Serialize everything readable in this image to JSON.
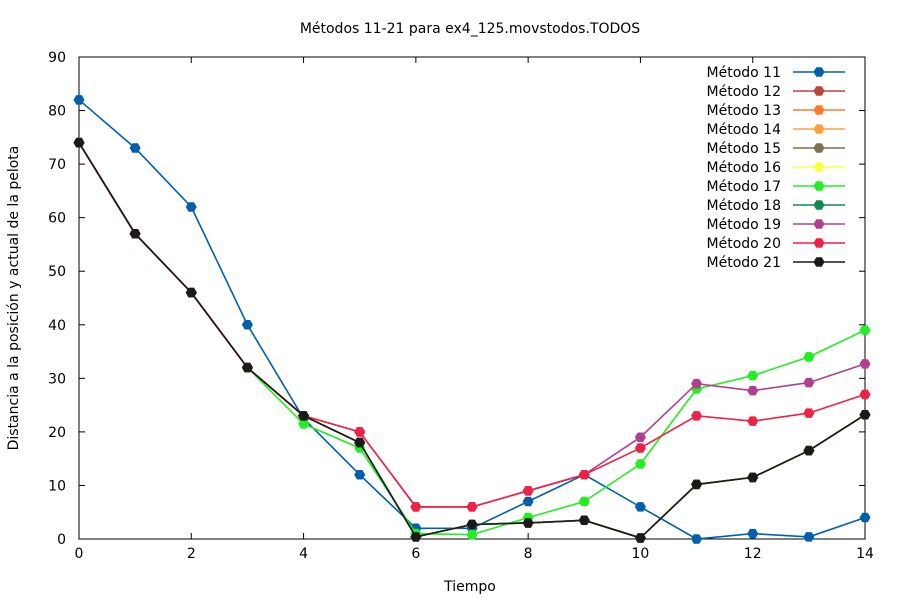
{
  "chart_data": {
    "type": "line",
    "title": "Métodos 11-21 para ex4_125.movstodos.TODOS",
    "xlabel": "Tiempo",
    "ylabel": "Distancia a la posición y actual de la pelota",
    "xlim": [
      0,
      14
    ],
    "ylim": [
      0,
      90
    ],
    "xticks": [
      "0",
      "2",
      "4",
      "6",
      "8",
      "10",
      "12",
      "14"
    ],
    "yticks": [
      "0",
      "10",
      "20",
      "30",
      "40",
      "50",
      "60",
      "70",
      "80",
      "90"
    ],
    "grid": false,
    "legend_position": "top-right",
    "x": [
      0,
      1,
      2,
      3,
      4,
      5,
      6,
      7,
      8,
      9,
      10,
      11,
      12,
      13,
      14
    ],
    "series": [
      {
        "name": "Método 11",
        "color": "#0060ad",
        "values": [
          82,
          73,
          62,
          40,
          22.5,
          12,
          2,
          2,
          7,
          12,
          6,
          0,
          1,
          0.4,
          4
        ]
      },
      {
        "name": "Método 12",
        "color": "#c0403c",
        "values": [
          74,
          57,
          46,
          32,
          23,
          18,
          0.4,
          2.7,
          3,
          3.5,
          0.2,
          10.2,
          11.5,
          16.5,
          23.2
        ]
      },
      {
        "name": "Método 13",
        "color": "#ff7a2a",
        "values": [
          74,
          57,
          46,
          32,
          23,
          18,
          0.4,
          2.7,
          3,
          3.5,
          0.2,
          10.2,
          11.5,
          16.5,
          23.2
        ]
      },
      {
        "name": "Método 14",
        "color": "#ffa040",
        "values": [
          74,
          57,
          46,
          32,
          23,
          18,
          0.4,
          2.7,
          3,
          3.5,
          0.2,
          10.2,
          11.5,
          16.5,
          23.2
        ]
      },
      {
        "name": "Método 15",
        "color": "#7f7050",
        "values": [
          74,
          57,
          46,
          32,
          23,
          18,
          0.4,
          2.7,
          3,
          3.5,
          0.2,
          10.2,
          11.5,
          16.5,
          23.2
        ]
      },
      {
        "name": "Método 16",
        "color": "#ffff44",
        "values": [
          74,
          57,
          46,
          32,
          23,
          18,
          0.4,
          2.7,
          3,
          3.5,
          0.2,
          10.2,
          11.5,
          16.5,
          23.2
        ]
      },
      {
        "name": "Método 17",
        "color": "#22ee22",
        "values": [
          74,
          57,
          46,
          32,
          21.5,
          17,
          1,
          0.8,
          4,
          7,
          14,
          28,
          30.5,
          34,
          39
        ]
      },
      {
        "name": "Método 18",
        "color": "#118855",
        "values": [
          74,
          57,
          46,
          32,
          23,
          18,
          0.4,
          2.7,
          3,
          3.5,
          0.2,
          10.2,
          11.5,
          16.5,
          23.2
        ]
      },
      {
        "name": "Método 19",
        "color": "#b0408f",
        "values": [
          74,
          57,
          46,
          32,
          23,
          20,
          6,
          6,
          9,
          12,
          19,
          29,
          27.7,
          29.2,
          32.7
        ]
      },
      {
        "name": "Método 20",
        "color": "#ee2244",
        "values": [
          74,
          57,
          46,
          32,
          23,
          20,
          6,
          6,
          9,
          12,
          17,
          23,
          22,
          23.5,
          27
        ]
      },
      {
        "name": "Método 21",
        "color": "#1a1a1a",
        "values": [
          74,
          57,
          46,
          32,
          23,
          18,
          0.4,
          2.7,
          3,
          3.5,
          0.2,
          10.2,
          11.5,
          16.5,
          23.2
        ]
      }
    ]
  }
}
